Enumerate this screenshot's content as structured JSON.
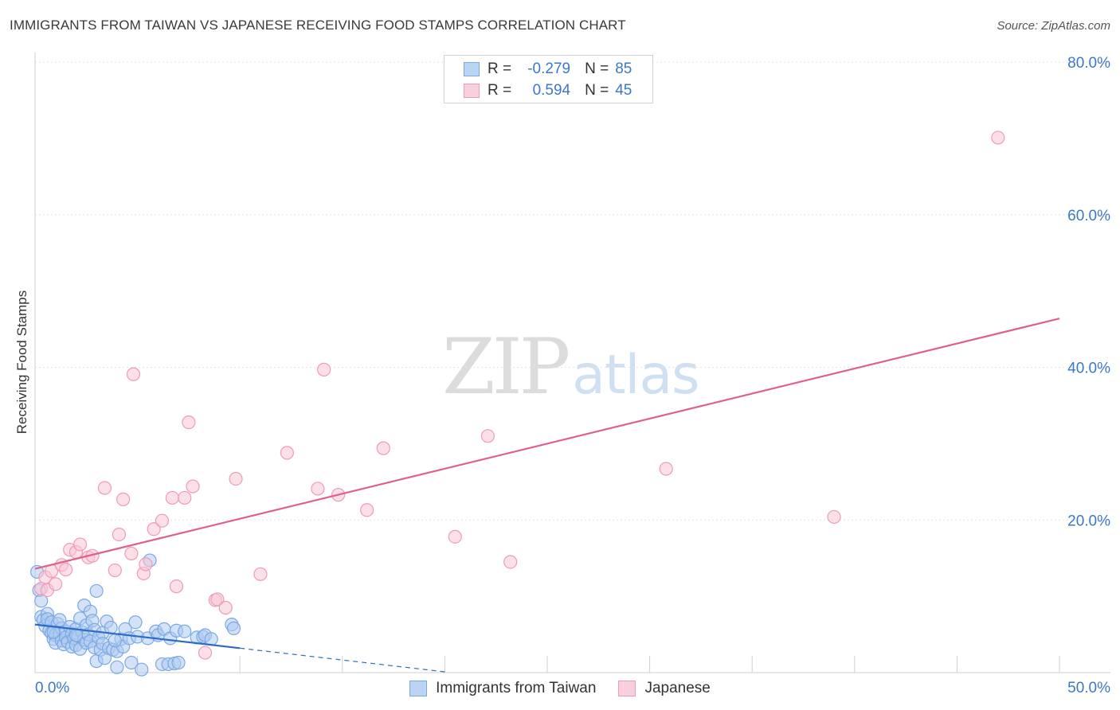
{
  "header": {
    "title": "IMMIGRANTS FROM TAIWAN VS JAPANESE RECEIVING FOOD STAMPS CORRELATION CHART",
    "source": "Source: ZipAtlas.com"
  },
  "watermark": {
    "zip": "ZIP",
    "atlas": "atlas"
  },
  "stats_legend": [
    {
      "r_label": "R =",
      "r_value": "-0.279",
      "n_label": "N =",
      "n_value": "85"
    },
    {
      "r_label": "R =",
      "r_value": "0.594",
      "n_label": "N =",
      "n_value": "45"
    }
  ],
  "chart_data": {
    "type": "scatter",
    "title": "IMMIGRANTS FROM TAIWAN VS JAPANESE RECEIVING FOOD STAMPS CORRELATION CHART",
    "xlabel": "",
    "ylabel": "Receiving Food Stamps",
    "xlim": [
      0,
      50
    ],
    "ylim": [
      0,
      80
    ],
    "x_tick_labels": [
      {
        "value": 0,
        "label": "0.0%"
      },
      {
        "value": 50,
        "label": "50.0%"
      }
    ],
    "y_tick_labels": [
      {
        "value": 20,
        "label": "20.0%"
      },
      {
        "value": 40,
        "label": "40.0%"
      },
      {
        "value": 60,
        "label": "60.0%"
      },
      {
        "value": 80,
        "label": "80.0%"
      }
    ],
    "grid": true,
    "legend_position": "bottom",
    "series": [
      {
        "name": "Immigrants from Taiwan",
        "color": "#7aa8e3",
        "fill": "#aecbf0",
        "trend": {
          "x0": 0,
          "y0": 6.3,
          "x1": 10,
          "y1": 3.2,
          "dash_to_x": 20,
          "dash_to_y": 0.1,
          "color": "#2b6cc4"
        },
        "points": [
          [
            0.1,
            13.2
          ],
          [
            0.2,
            10.8
          ],
          [
            0.3,
            9.4
          ],
          [
            0.3,
            7.3
          ],
          [
            0.4,
            6.9
          ],
          [
            0.5,
            6.1
          ],
          [
            0.6,
            7.7
          ],
          [
            0.6,
            7.0
          ],
          [
            0.7,
            5.5
          ],
          [
            0.8,
            6.6
          ],
          [
            0.8,
            5.2
          ],
          [
            0.9,
            4.4
          ],
          [
            1.0,
            4.9
          ],
          [
            1.0,
            3.9
          ],
          [
            1.1,
            6.4
          ],
          [
            1.2,
            5.0
          ],
          [
            1.3,
            4.2
          ],
          [
            1.3,
            5.8
          ],
          [
            1.4,
            3.7
          ],
          [
            1.5,
            5.4
          ],
          [
            1.5,
            4.6
          ],
          [
            1.6,
            4.0
          ],
          [
            1.7,
            6.0
          ],
          [
            1.8,
            3.4
          ],
          [
            1.8,
            5.1
          ],
          [
            1.9,
            4.5
          ],
          [
            2.0,
            5.7
          ],
          [
            2.0,
            3.6
          ],
          [
            2.1,
            4.8
          ],
          [
            2.2,
            7.1
          ],
          [
            2.2,
            3.1
          ],
          [
            2.3,
            5.3
          ],
          [
            2.4,
            4.3
          ],
          [
            2.4,
            8.8
          ],
          [
            2.5,
            6.2
          ],
          [
            2.5,
            3.9
          ],
          [
            2.6,
            5.0
          ],
          [
            2.7,
            8.0
          ],
          [
            2.7,
            4.1
          ],
          [
            2.8,
            6.8
          ],
          [
            2.9,
            3.3
          ],
          [
            2.9,
            5.6
          ],
          [
            3.0,
            10.7
          ],
          [
            3.0,
            1.5
          ],
          [
            3.1,
            4.6
          ],
          [
            3.2,
            3.0
          ],
          [
            3.3,
            5.2
          ],
          [
            3.3,
            3.8
          ],
          [
            3.4,
            1.9
          ],
          [
            3.5,
            6.7
          ],
          [
            3.6,
            3.2
          ],
          [
            3.7,
            5.9
          ],
          [
            3.8,
            3.0
          ],
          [
            4.0,
            2.8
          ],
          [
            4.0,
            0.7
          ],
          [
            4.2,
            4.4
          ],
          [
            4.3,
            3.4
          ],
          [
            4.4,
            5.7
          ],
          [
            4.6,
            4.5
          ],
          [
            4.7,
            1.3
          ],
          [
            4.9,
            6.6
          ],
          [
            5.0,
            4.7
          ],
          [
            5.2,
            0.4
          ],
          [
            5.5,
            4.5
          ],
          [
            5.6,
            14.7
          ],
          [
            5.9,
            5.4
          ],
          [
            6.0,
            4.9
          ],
          [
            6.2,
            1.1
          ],
          [
            6.3,
            5.7
          ],
          [
            6.5,
            1.1
          ],
          [
            6.6,
            4.5
          ],
          [
            6.8,
            1.2
          ],
          [
            6.9,
            5.5
          ],
          [
            7.0,
            1.3
          ],
          [
            7.3,
            5.4
          ],
          [
            7.9,
            4.6
          ],
          [
            8.2,
            4.7
          ],
          [
            8.3,
            4.9
          ],
          [
            8.6,
            4.4
          ],
          [
            9.6,
            6.3
          ],
          [
            9.7,
            5.8
          ],
          [
            3.9,
            4.2
          ],
          [
            1.2,
            6.9
          ],
          [
            2.0,
            4.9
          ],
          [
            0.9,
            5.3
          ]
        ]
      },
      {
        "name": "Japanese",
        "color": "#ee9bb5",
        "fill": "#f8c6d5",
        "trend": {
          "x0": 0,
          "y0": 13.6,
          "x1": 50,
          "y1": 46.4,
          "color": "#e0608c"
        },
        "points": [
          [
            0.3,
            11.0
          ],
          [
            0.5,
            12.5
          ],
          [
            0.6,
            10.8
          ],
          [
            0.8,
            13.3
          ],
          [
            1.0,
            11.6
          ],
          [
            1.3,
            14.1
          ],
          [
            1.5,
            13.5
          ],
          [
            1.7,
            16.1
          ],
          [
            2.0,
            15.8
          ],
          [
            2.2,
            16.8
          ],
          [
            2.6,
            15.1
          ],
          [
            2.8,
            15.3
          ],
          [
            3.4,
            24.2
          ],
          [
            3.9,
            13.4
          ],
          [
            4.1,
            18.1
          ],
          [
            4.3,
            22.7
          ],
          [
            4.7,
            15.6
          ],
          [
            4.8,
            39.1
          ],
          [
            5.3,
            13.0
          ],
          [
            5.4,
            14.2
          ],
          [
            5.8,
            18.8
          ],
          [
            6.2,
            19.9
          ],
          [
            6.7,
            22.9
          ],
          [
            6.9,
            11.3
          ],
          [
            7.3,
            22.9
          ],
          [
            7.5,
            32.8
          ],
          [
            7.7,
            24.4
          ],
          [
            8.3,
            2.6
          ],
          [
            8.8,
            9.5
          ],
          [
            8.9,
            9.6
          ],
          [
            9.3,
            8.5
          ],
          [
            9.8,
            25.4
          ],
          [
            11.0,
            12.9
          ],
          [
            12.3,
            28.8
          ],
          [
            13.8,
            24.1
          ],
          [
            14.1,
            39.7
          ],
          [
            14.8,
            23.3
          ],
          [
            16.2,
            21.3
          ],
          [
            17.0,
            29.4
          ],
          [
            20.5,
            17.8
          ],
          [
            22.1,
            31.0
          ],
          [
            23.2,
            14.5
          ],
          [
            30.8,
            26.7
          ],
          [
            39.0,
            20.4
          ],
          [
            47.0,
            70.1
          ]
        ]
      }
    ]
  }
}
